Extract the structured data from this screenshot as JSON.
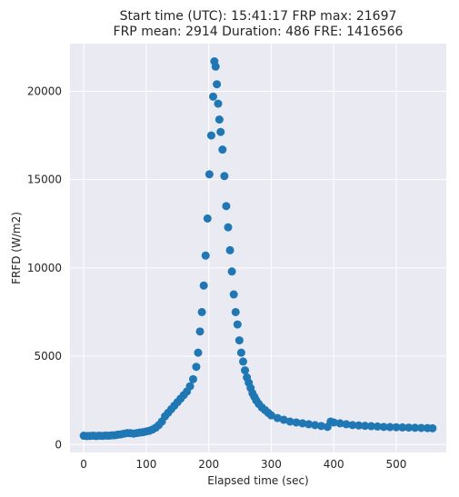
{
  "chart_data": {
    "type": "scatter",
    "title": "Start time (UTC): 15:41:17 FRP max: 21697",
    "subtitle": "FRP mean: 2914 Duration: 486 FRE: 1416566",
    "xlabel": "Elapsed time (sec)",
    "ylabel": "FRFD (W/m2)",
    "xlim": [
      -22,
      580
    ],
    "ylim": [
      -450,
      22700
    ],
    "xticks": [
      0,
      100,
      200,
      300,
      400,
      500
    ],
    "yticks": [
      0,
      5000,
      10000,
      15000,
      20000
    ],
    "grid": true,
    "marker_color": "#1f77b4",
    "background_color": "#eaeaf2",
    "series": [
      {
        "x": [
          0,
          5,
          10,
          15,
          20,
          25,
          30,
          35,
          40,
          45,
          50,
          55,
          60,
          65,
          70,
          75,
          80,
          85,
          90,
          95,
          100,
          105,
          110,
          115,
          120,
          125,
          130,
          135,
          140,
          145,
          150,
          155,
          160,
          165,
          170,
          175,
          180,
          183,
          186,
          189,
          192,
          195,
          198,
          201,
          204,
          207,
          209,
          211,
          213,
          215,
          217,
          219,
          222,
          225,
          228,
          231,
          234,
          237,
          240,
          243,
          246,
          249,
          252,
          255,
          258,
          261,
          264,
          267,
          270,
          273,
          276,
          280,
          285,
          290,
          295,
          300,
          310,
          320,
          330,
          340,
          350,
          360,
          370,
          380,
          390,
          395,
          400,
          410,
          420,
          430,
          440,
          450,
          460,
          470,
          480,
          490,
          500,
          510,
          520,
          530,
          540,
          550,
          558
        ],
        "y": [
          500,
          480,
          490,
          500,
          480,
          500,
          490,
          510,
          500,
          520,
          530,
          560,
          580,
          620,
          650,
          640,
          620,
          650,
          680,
          700,
          740,
          780,
          850,
          950,
          1100,
          1300,
          1600,
          1800,
          2000,
          2200,
          2400,
          2600,
          2800,
          3000,
          3300,
          3700,
          4400,
          5200,
          6400,
          7500,
          9000,
          10700,
          12800,
          15300,
          17500,
          19700,
          21697,
          21400,
          20400,
          19300,
          18400,
          17700,
          16700,
          15200,
          13500,
          12300,
          11000,
          9800,
          8500,
          7500,
          6800,
          5900,
          5200,
          4700,
          4200,
          3800,
          3500,
          3200,
          2900,
          2700,
          2500,
          2300,
          2100,
          1950,
          1800,
          1650,
          1500,
          1400,
          1300,
          1250,
          1200,
          1150,
          1100,
          1050,
          1000,
          1300,
          1250,
          1200,
          1150,
          1100,
          1080,
          1060,
          1040,
          1020,
          1000,
          990,
          980,
          970,
          960,
          950,
          940,
          930,
          920
        ]
      }
    ]
  }
}
